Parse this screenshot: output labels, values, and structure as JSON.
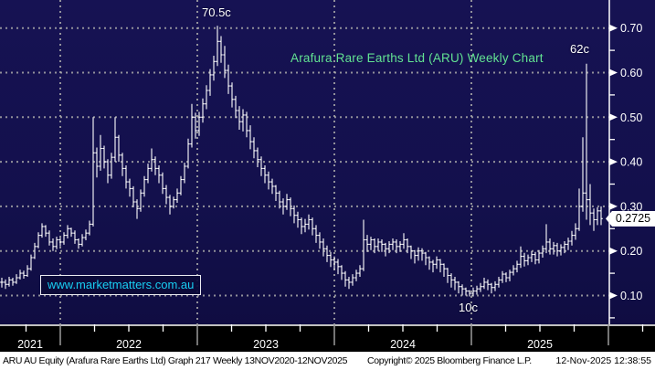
{
  "colors": {
    "background": "#13104c",
    "bar": "#ffffff",
    "grid": "#a8a8a8",
    "title_green": "#62e392",
    "watermark_cyan": "#18cef2",
    "axis_white": "#ffffff",
    "strip_black": "#000000",
    "footer_white": "#ffffff"
  },
  "watermark": {
    "text": "www.marketmatters.com.au"
  },
  "footer": {
    "left": "ARU AU Equity (Arafura Rare Earths Ltd) Graph 217 Weekly 13NOV2020-12NOV2025",
    "copyright": "Copyright© 2025 Bloomberg Finance L.P.",
    "timestamp": "12-Nov-2025 12:38:55"
  },
  "chart_data": {
    "type": "ohlc-bar",
    "title": "Arafura Rare Earths Ltd (ARU) Weekly Chart",
    "security": "ARU AU Equity",
    "frequency": "Weekly",
    "date_range": "13NOV2020-12NOV2025",
    "last_price": "0.2725",
    "y_ticks": [
      "0.70",
      "0.60",
      "0.50",
      "0.40",
      "0.30",
      "0.20",
      "0.10"
    ],
    "y_minor_step": 0.05,
    "ylim": [
      0.036,
      0.763
    ],
    "x_year_labels": [
      "2021",
      "2022",
      "2023",
      "2024",
      "2025"
    ],
    "grid": "dotted",
    "legend_position": "none",
    "annotations": {
      "peak": "70.5c",
      "spike": "62c",
      "low": "10c"
    },
    "bars_format": "[high, low, close] in AUD, weekly, open = previous close",
    "bars": [
      [
        0.14,
        0.118,
        0.13
      ],
      [
        0.136,
        0.115,
        0.125
      ],
      [
        0.142,
        0.12,
        0.135
      ],
      [
        0.14,
        0.122,
        0.13
      ],
      [
        0.148,
        0.126,
        0.14
      ],
      [
        0.158,
        0.136,
        0.15
      ],
      [
        0.156,
        0.138,
        0.145
      ],
      [
        0.168,
        0.142,
        0.16
      ],
      [
        0.192,
        0.156,
        0.185
      ],
      [
        0.218,
        0.182,
        0.21
      ],
      [
        0.242,
        0.206,
        0.235
      ],
      [
        0.262,
        0.23,
        0.255
      ],
      [
        0.258,
        0.232,
        0.24
      ],
      [
        0.246,
        0.212,
        0.22
      ],
      [
        0.228,
        0.2,
        0.21
      ],
      [
        0.232,
        0.204,
        0.225
      ],
      [
        0.23,
        0.21,
        0.22
      ],
      [
        0.242,
        0.214,
        0.235
      ],
      [
        0.258,
        0.228,
        0.25
      ],
      [
        0.252,
        0.232,
        0.24
      ],
      [
        0.246,
        0.216,
        0.225
      ],
      [
        0.228,
        0.205,
        0.215
      ],
      [
        0.238,
        0.21,
        0.23
      ],
      [
        0.248,
        0.224,
        0.24
      ],
      [
        0.268,
        0.235,
        0.26
      ],
      [
        0.5,
        0.255,
        0.42
      ],
      [
        0.432,
        0.365,
        0.39
      ],
      [
        0.46,
        0.38,
        0.43
      ],
      [
        0.436,
        0.385,
        0.4
      ],
      [
        0.406,
        0.352,
        0.37
      ],
      [
        0.42,
        0.362,
        0.41
      ],
      [
        0.5,
        0.4,
        0.455
      ],
      [
        0.46,
        0.4,
        0.415
      ],
      [
        0.42,
        0.368,
        0.385
      ],
      [
        0.392,
        0.34,
        0.355
      ],
      [
        0.362,
        0.322,
        0.34
      ],
      [
        0.345,
        0.298,
        0.31
      ],
      [
        0.316,
        0.272,
        0.295
      ],
      [
        0.338,
        0.288,
        0.33
      ],
      [
        0.368,
        0.322,
        0.36
      ],
      [
        0.396,
        0.352,
        0.385
      ],
      [
        0.43,
        0.378,
        0.405
      ],
      [
        0.412,
        0.37,
        0.385
      ],
      [
        0.392,
        0.352,
        0.37
      ],
      [
        0.376,
        0.328,
        0.34
      ],
      [
        0.348,
        0.305,
        0.32
      ],
      [
        0.326,
        0.282,
        0.3
      ],
      [
        0.322,
        0.295,
        0.315
      ],
      [
        0.34,
        0.308,
        0.33
      ],
      [
        0.368,
        0.325,
        0.36
      ],
      [
        0.398,
        0.352,
        0.39
      ],
      [
        0.452,
        0.385,
        0.44
      ],
      [
        0.53,
        0.432,
        0.5
      ],
      [
        0.51,
        0.452,
        0.47
      ],
      [
        0.512,
        0.458,
        0.5
      ],
      [
        0.542,
        0.488,
        0.53
      ],
      [
        0.572,
        0.518,
        0.56
      ],
      [
        0.608,
        0.548,
        0.595
      ],
      [
        0.638,
        0.582,
        0.625
      ],
      [
        0.705,
        0.615,
        0.67
      ],
      [
        0.682,
        0.622,
        0.64
      ],
      [
        0.66,
        0.588,
        0.605
      ],
      [
        0.618,
        0.552,
        0.57
      ],
      [
        0.578,
        0.522,
        0.54
      ],
      [
        0.548,
        0.498,
        0.515
      ],
      [
        0.525,
        0.472,
        0.49
      ],
      [
        0.518,
        0.468,
        0.505
      ],
      [
        0.512,
        0.455,
        0.47
      ],
      [
        0.482,
        0.428,
        0.445
      ],
      [
        0.455,
        0.408,
        0.425
      ],
      [
        0.432,
        0.388,
        0.405
      ],
      [
        0.412,
        0.368,
        0.385
      ],
      [
        0.392,
        0.352,
        0.37
      ],
      [
        0.378,
        0.338,
        0.355
      ],
      [
        0.362,
        0.328,
        0.345
      ],
      [
        0.348,
        0.312,
        0.33
      ],
      [
        0.335,
        0.295,
        0.31
      ],
      [
        0.318,
        0.282,
        0.3
      ],
      [
        0.328,
        0.292,
        0.315
      ],
      [
        0.32,
        0.278,
        0.295
      ],
      [
        0.302,
        0.262,
        0.28
      ],
      [
        0.288,
        0.252,
        0.27
      ],
      [
        0.275,
        0.238,
        0.255
      ],
      [
        0.272,
        0.242,
        0.26
      ],
      [
        0.282,
        0.248,
        0.27
      ],
      [
        0.275,
        0.235,
        0.25
      ],
      [
        0.258,
        0.218,
        0.235
      ],
      [
        0.242,
        0.205,
        0.22
      ],
      [
        0.228,
        0.188,
        0.205
      ],
      [
        0.212,
        0.175,
        0.19
      ],
      [
        0.198,
        0.164,
        0.18
      ],
      [
        0.188,
        0.158,
        0.175
      ],
      [
        0.182,
        0.148,
        0.165
      ],
      [
        0.168,
        0.135,
        0.15
      ],
      [
        0.155,
        0.12,
        0.135
      ],
      [
        0.142,
        0.115,
        0.13
      ],
      [
        0.148,
        0.122,
        0.14
      ],
      [
        0.158,
        0.132,
        0.15
      ],
      [
        0.168,
        0.142,
        0.16
      ],
      [
        0.27,
        0.155,
        0.225
      ],
      [
        0.236,
        0.198,
        0.215
      ],
      [
        0.232,
        0.202,
        0.225
      ],
      [
        0.228,
        0.195,
        0.21
      ],
      [
        0.228,
        0.2,
        0.22
      ],
      [
        0.226,
        0.198,
        0.215
      ],
      [
        0.218,
        0.188,
        0.205
      ],
      [
        0.222,
        0.195,
        0.215
      ],
      [
        0.228,
        0.202,
        0.22
      ],
      [
        0.226,
        0.195,
        0.21
      ],
      [
        0.222,
        0.198,
        0.215
      ],
      [
        0.24,
        0.205,
        0.225
      ],
      [
        0.228,
        0.195,
        0.21
      ],
      [
        0.212,
        0.182,
        0.2
      ],
      [
        0.202,
        0.172,
        0.19
      ],
      [
        0.208,
        0.178,
        0.2
      ],
      [
        0.206,
        0.178,
        0.195
      ],
      [
        0.198,
        0.168,
        0.185
      ],
      [
        0.188,
        0.158,
        0.175
      ],
      [
        0.18,
        0.152,
        0.17
      ],
      [
        0.188,
        0.16,
        0.18
      ],
      [
        0.182,
        0.152,
        0.17
      ],
      [
        0.172,
        0.142,
        0.16
      ],
      [
        0.162,
        0.128,
        0.145
      ],
      [
        0.15,
        0.118,
        0.135
      ],
      [
        0.142,
        0.112,
        0.13
      ],
      [
        0.132,
        0.105,
        0.12
      ],
      [
        0.125,
        0.1,
        0.115
      ],
      [
        0.118,
        0.1,
        0.11
      ],
      [
        0.112,
        0.098,
        0.105
      ],
      [
        0.118,
        0.098,
        0.11
      ],
      [
        0.122,
        0.102,
        0.115
      ],
      [
        0.128,
        0.108,
        0.12
      ],
      [
        0.14,
        0.115,
        0.13
      ],
      [
        0.136,
        0.112,
        0.125
      ],
      [
        0.128,
        0.105,
        0.118
      ],
      [
        0.132,
        0.11,
        0.125
      ],
      [
        0.142,
        0.118,
        0.135
      ],
      [
        0.155,
        0.128,
        0.148
      ],
      [
        0.152,
        0.13,
        0.14
      ],
      [
        0.158,
        0.132,
        0.152
      ],
      [
        0.168,
        0.145,
        0.16
      ],
      [
        0.178,
        0.152,
        0.17
      ],
      [
        0.21,
        0.162,
        0.188
      ],
      [
        0.196,
        0.165,
        0.178
      ],
      [
        0.192,
        0.168,
        0.185
      ],
      [
        0.2,
        0.175,
        0.192
      ],
      [
        0.198,
        0.17,
        0.18
      ],
      [
        0.202,
        0.172,
        0.195
      ],
      [
        0.212,
        0.185,
        0.205
      ],
      [
        0.26,
        0.195,
        0.22
      ],
      [
        0.228,
        0.192,
        0.205
      ],
      [
        0.22,
        0.192,
        0.212
      ],
      [
        0.218,
        0.188,
        0.2
      ],
      [
        0.215,
        0.19,
        0.208
      ],
      [
        0.222,
        0.195,
        0.215
      ],
      [
        0.23,
        0.202,
        0.222
      ],
      [
        0.245,
        0.212,
        0.235
      ],
      [
        0.262,
        0.225,
        0.25
      ],
      [
        0.34,
        0.245,
        0.3
      ],
      [
        0.455,
        0.288,
        0.33
      ],
      [
        0.62,
        0.27,
        0.315
      ],
      [
        0.35,
        0.258,
        0.285
      ],
      [
        0.295,
        0.245,
        0.27
      ],
      [
        0.298,
        0.258,
        0.29
      ],
      [
        0.3,
        0.258,
        0.2725
      ]
    ]
  }
}
